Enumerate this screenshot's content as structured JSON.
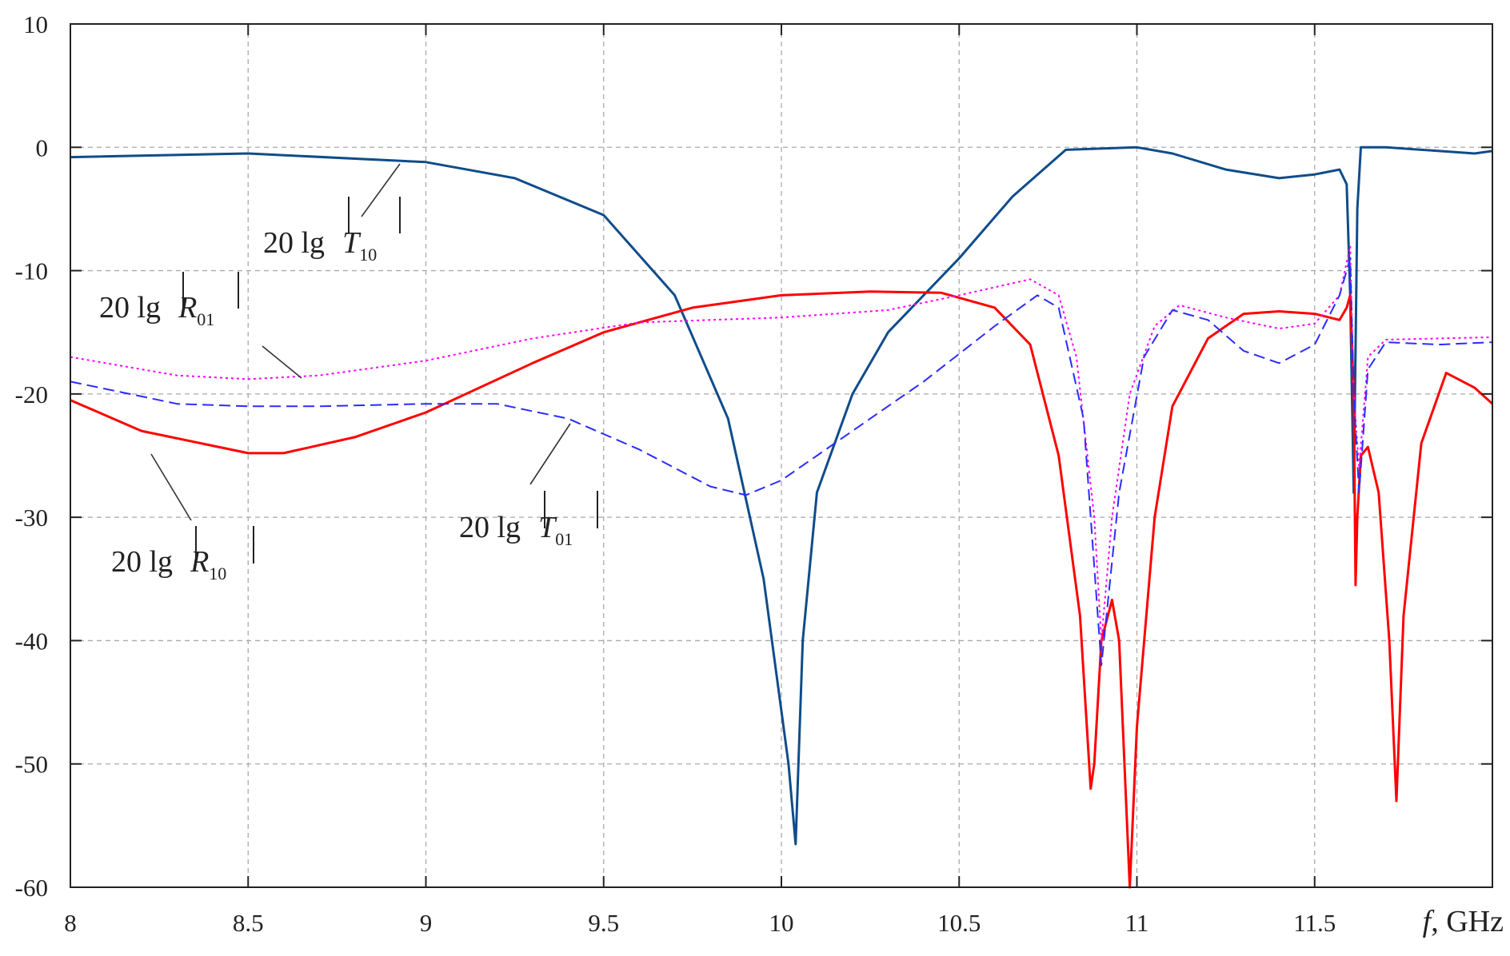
{
  "chart_data": {
    "type": "line",
    "title": "",
    "xlabel": "f, GHz",
    "xlabel_parts": {
      "var": "f",
      "unit": ", GHz"
    },
    "ylabel": "",
    "xlim": [
      8,
      12
    ],
    "ylim": [
      -60,
      10
    ],
    "grid": true,
    "x_ticks": [
      "8",
      "8.5",
      "9",
      "9.5",
      "10",
      "10.5",
      "11",
      "11.5"
    ],
    "x_tick_values": [
      8,
      8.5,
      9,
      9.5,
      10,
      10.5,
      11,
      11.5
    ],
    "y_ticks": [
      "10",
      "0",
      "-10",
      "-20",
      "-30",
      "-40",
      "-50",
      "-60"
    ],
    "y_tick_values": [
      10,
      0,
      -10,
      -20,
      -30,
      -40,
      -50,
      -60
    ],
    "series": [
      {
        "name": "20 lg|T10|",
        "label_prefix": "20  lg",
        "label_var": "T",
        "label_sub": "10",
        "color": "#0f4c8a",
        "style": "solid",
        "x": [
          8,
          8.5,
          9,
          9.25,
          9.5,
          9.7,
          9.85,
          9.95,
          10.02,
          10.04,
          10.06,
          10.1,
          10.2,
          10.3,
          10.5,
          10.65,
          10.8,
          11,
          11.1,
          11.25,
          11.4,
          11.5,
          11.57,
          11.59,
          11.6,
          11.61,
          11.62,
          11.63,
          11.7,
          11.85,
          11.95,
          12
        ],
        "y": [
          -0.8,
          -0.5,
          -1.2,
          -2.5,
          -5.5,
          -12,
          -22,
          -35,
          -50,
          -56.5,
          -40,
          -28,
          -20,
          -15,
          -9,
          -4,
          -0.2,
          0,
          -0.5,
          -1.8,
          -2.5,
          -2.2,
          -1.8,
          -3,
          -12,
          -28,
          -5,
          0,
          0,
          -0.3,
          -0.5,
          -0.3
        ]
      },
      {
        "name": "20 lg|R10|",
        "label_prefix": "20  lg",
        "label_var": "R",
        "label_sub": "10",
        "color": "#ff0000",
        "style": "solid",
        "x": [
          8,
          8.2,
          8.5,
          8.6,
          8.8,
          9,
          9.3,
          9.5,
          9.75,
          10,
          10.25,
          10.45,
          10.6,
          10.7,
          10.78,
          10.84,
          10.87,
          10.88,
          10.9,
          10.93,
          10.95,
          10.98,
          11,
          11.05,
          11.1,
          11.2,
          11.3,
          11.4,
          11.5,
          11.57,
          11.59,
          11.6,
          11.61,
          11.615,
          11.62,
          11.63,
          11.65,
          11.68,
          11.71,
          11.73,
          11.75,
          11.8,
          11.87,
          11.95,
          12
        ],
        "y": [
          -20.5,
          -23,
          -24.8,
          -24.8,
          -23.5,
          -21.5,
          -17.5,
          -15,
          -13,
          -12,
          -11.7,
          -11.8,
          -13,
          -16,
          -25,
          -38,
          -52,
          -50,
          -40,
          -36.7,
          -40,
          -60,
          -47,
          -30,
          -21,
          -15.5,
          -13.5,
          -13.3,
          -13.5,
          -14,
          -13,
          -12,
          -20,
          -35.5,
          -30,
          -25,
          -24.3,
          -28,
          -40,
          -53,
          -38,
          -24,
          -18.3,
          -19.5,
          -20.8
        ]
      },
      {
        "name": "20 lg|R01|",
        "label_prefix": "20  lg",
        "label_var": "R",
        "label_sub": "01",
        "color": "#ff00ff",
        "style": "dotted",
        "x": [
          8,
          8.3,
          8.5,
          8.7,
          9,
          9.3,
          9.6,
          10,
          10.3,
          10.5,
          10.7,
          10.78,
          10.83,
          10.88,
          10.9,
          10.93,
          10.98,
          11.05,
          11.12,
          11.25,
          11.4,
          11.5,
          11.57,
          11.6,
          11.61,
          11.625,
          11.65,
          11.7,
          11.85,
          12
        ],
        "y": [
          -17,
          -18.5,
          -18.8,
          -18.5,
          -17.3,
          -15.5,
          -14.2,
          -13.8,
          -13.2,
          -12,
          -10.7,
          -12,
          -17,
          -30,
          -40,
          -30,
          -20,
          -14.5,
          -12.8,
          -13.8,
          -14.7,
          -14.3,
          -12,
          -8,
          -20,
          -26,
          -17,
          -15.6,
          -15.5,
          -15.4
        ]
      },
      {
        "name": "20 lg|T01|",
        "label_prefix": "20  lg",
        "label_var": "T",
        "label_sub": "01",
        "color": "#2b2bff",
        "style": "dashed",
        "x": [
          8,
          8.3,
          8.5,
          8.7,
          9,
          9.2,
          9.4,
          9.6,
          9.8,
          9.9,
          10,
          10.2,
          10.4,
          10.6,
          10.72,
          10.78,
          10.85,
          10.9,
          10.95,
          11.02,
          11.1,
          11.2,
          11.3,
          11.4,
          11.5,
          11.57,
          11.6,
          11.61,
          11.625,
          11.65,
          11.7,
          11.85,
          12
        ],
        "y": [
          -19,
          -20.8,
          -21,
          -21,
          -20.8,
          -20.8,
          -22,
          -24.5,
          -27.5,
          -28.2,
          -27,
          -23,
          -19,
          -14.5,
          -12,
          -13,
          -22,
          -42,
          -28,
          -17,
          -13.2,
          -14,
          -16.5,
          -17.5,
          -16,
          -12,
          -9,
          -20,
          -28,
          -18,
          -15.8,
          -16,
          -15.8
        ]
      }
    ]
  }
}
